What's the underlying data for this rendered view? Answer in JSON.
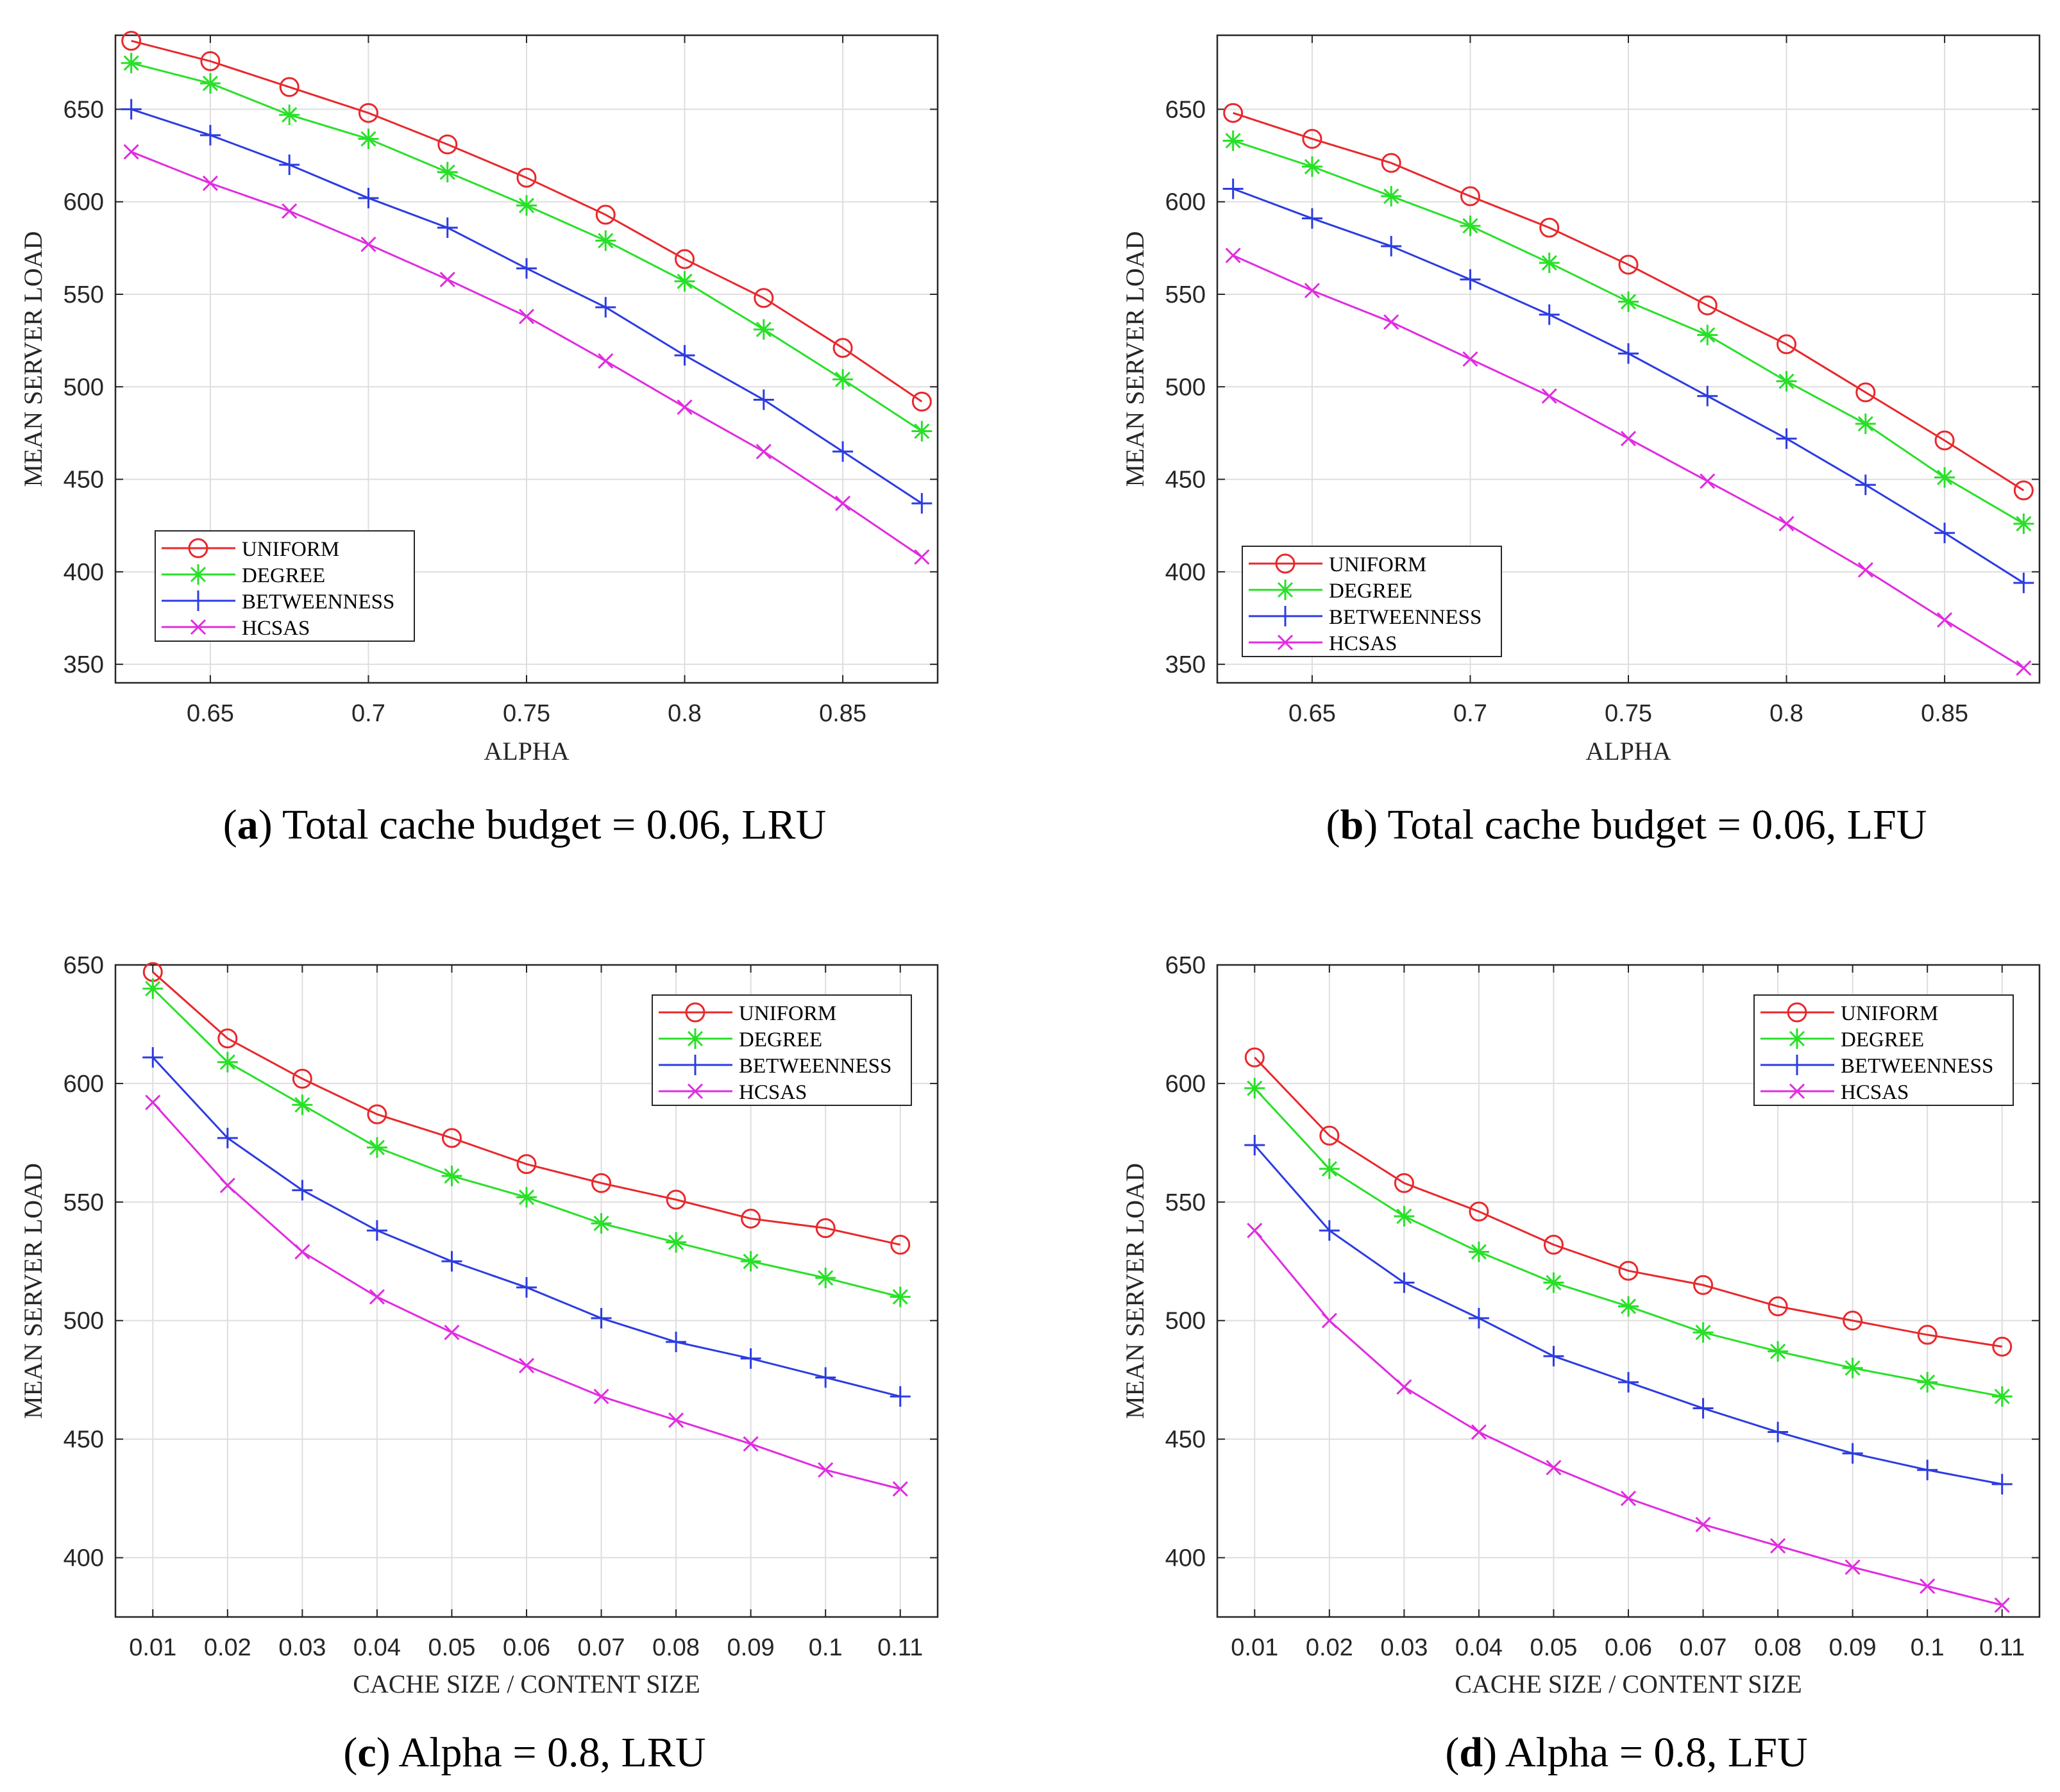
{
  "chart_data": [
    {
      "type": "line",
      "caption_letter": "a",
      "caption_text": " Total cache budget = 0.06, LRU",
      "xlabel": "ALPHA",
      "ylabel": "MEAN SERVER LOAD",
      "x": [
        0.625,
        0.65,
        0.675,
        0.7,
        0.725,
        0.75,
        0.775,
        0.8,
        0.825,
        0.85,
        0.875
      ],
      "xlim": [
        0.62,
        0.88
      ],
      "ylim": [
        340,
        690
      ],
      "xticks": [
        0.65,
        0.7,
        0.75,
        0.8,
        0.85
      ],
      "xtick_labels": [
        "0.65",
        "0.7",
        "0.75",
        "0.8",
        "0.85"
      ],
      "yticks": [
        350,
        400,
        450,
        500,
        550,
        600,
        650
      ],
      "ytick_labels": [
        "350",
        "400",
        "450",
        "500",
        "550",
        "600",
        "650"
      ],
      "grid": true,
      "legend_position": "bottom-left",
      "series": [
        {
          "name": "UNIFORM",
          "color": "#e8282c",
          "marker": "circle",
          "values": [
            687,
            676,
            662,
            648,
            631,
            613,
            593,
            569,
            548,
            521,
            492
          ]
        },
        {
          "name": "DEGREE",
          "color": "#28e028",
          "marker": "asterisk",
          "values": [
            675,
            664,
            647,
            634,
            616,
            598,
            579,
            557,
            531,
            504,
            476
          ]
        },
        {
          "name": "BETWEENNESS",
          "color": "#2c3ce0",
          "marker": "plus",
          "values": [
            650,
            636,
            620,
            602,
            586,
            564,
            543,
            517,
            493,
            465,
            437
          ]
        },
        {
          "name": "HCSAS",
          "color": "#e02ce0",
          "marker": "cross",
          "values": [
            627,
            610,
            595,
            577,
            558,
            538,
            514,
            489,
            465,
            437,
            408
          ]
        }
      ]
    },
    {
      "type": "line",
      "caption_letter": "b",
      "caption_text": " Total cache budget = 0.06, LFU",
      "xlabel": "ALPHA",
      "ylabel": "MEAN SERVER LOAD",
      "x": [
        0.625,
        0.65,
        0.675,
        0.7,
        0.725,
        0.75,
        0.775,
        0.8,
        0.825,
        0.85,
        0.875
      ],
      "xlim": [
        0.62,
        0.88
      ],
      "ylim": [
        340,
        690
      ],
      "xticks": [
        0.65,
        0.7,
        0.75,
        0.8,
        0.85
      ],
      "xtick_labels": [
        "0.65",
        "0.7",
        "0.75",
        "0.8",
        "0.85"
      ],
      "yticks": [
        350,
        400,
        450,
        500,
        550,
        600,
        650
      ],
      "ytick_labels": [
        "350",
        "400",
        "450",
        "500",
        "550",
        "600",
        "650"
      ],
      "grid": true,
      "legend_position": "bottom-left",
      "series": [
        {
          "name": "UNIFORM",
          "color": "#e8282c",
          "marker": "circle",
          "values": [
            648,
            634,
            621,
            603,
            586,
            566,
            544,
            523,
            497,
            471,
            444
          ]
        },
        {
          "name": "DEGREE",
          "color": "#28e028",
          "marker": "asterisk",
          "values": [
            633,
            619,
            603,
            587,
            567,
            546,
            528,
            503,
            480,
            451,
            426
          ]
        },
        {
          "name": "BETWEENNESS",
          "color": "#2c3ce0",
          "marker": "plus",
          "values": [
            607,
            591,
            576,
            558,
            539,
            518,
            495,
            472,
            447,
            421,
            394
          ]
        },
        {
          "name": "HCSAS",
          "color": "#e02ce0",
          "marker": "cross",
          "values": [
            571,
            552,
            535,
            515,
            495,
            472,
            449,
            426,
            401,
            374,
            348
          ]
        }
      ]
    },
    {
      "type": "line",
      "caption_letter": "c",
      "caption_text": " Alpha = 0.8, LRU",
      "xlabel": "CACHE SIZE / CONTENT SIZE",
      "ylabel": "MEAN SERVER LOAD",
      "x": [
        0.01,
        0.02,
        0.03,
        0.04,
        0.05,
        0.06,
        0.07,
        0.08,
        0.09,
        0.1,
        0.11
      ],
      "xlim": [
        0.005,
        0.115
      ],
      "ylim": [
        375,
        650
      ],
      "xticks": [
        0.01,
        0.02,
        0.03,
        0.04,
        0.05,
        0.06,
        0.07,
        0.08,
        0.09,
        0.1,
        0.11
      ],
      "xtick_labels": [
        "0.01",
        "0.02",
        "0.03",
        "0.04",
        "0.05",
        "0.06",
        "0.07",
        "0.08",
        "0.09",
        "0.1",
        "0.11"
      ],
      "yticks": [
        400,
        450,
        500,
        550,
        600,
        650
      ],
      "ytick_labels": [
        "400",
        "450",
        "500",
        "550",
        "600",
        "650"
      ],
      "grid": true,
      "legend_position": "top-right",
      "series": [
        {
          "name": "UNIFORM",
          "color": "#e8282c",
          "marker": "circle",
          "values": [
            647,
            619,
            602,
            587,
            577,
            566,
            558,
            551,
            543,
            539,
            532
          ]
        },
        {
          "name": "DEGREE",
          "color": "#28e028",
          "marker": "asterisk",
          "values": [
            640,
            609,
            591,
            573,
            561,
            552,
            541,
            533,
            525,
            518,
            510
          ]
        },
        {
          "name": "BETWEENNESS",
          "color": "#2c3ce0",
          "marker": "plus",
          "values": [
            611,
            577,
            555,
            538,
            525,
            514,
            501,
            491,
            484,
            476,
            468
          ]
        },
        {
          "name": "HCSAS",
          "color": "#e02ce0",
          "marker": "cross",
          "values": [
            592,
            557,
            529,
            510,
            495,
            481,
            468,
            458,
            448,
            437,
            429
          ]
        }
      ]
    },
    {
      "type": "line",
      "caption_letter": "d",
      "caption_text": " Alpha = 0.8, LFU",
      "xlabel": "CACHE SIZE / CONTENT SIZE",
      "ylabel": "MEAN SERVER LOAD",
      "x": [
        0.01,
        0.02,
        0.03,
        0.04,
        0.05,
        0.06,
        0.07,
        0.08,
        0.09,
        0.1,
        0.11
      ],
      "xlim": [
        0.005,
        0.115
      ],
      "ylim": [
        375,
        650
      ],
      "xticks": [
        0.01,
        0.02,
        0.03,
        0.04,
        0.05,
        0.06,
        0.07,
        0.08,
        0.09,
        0.1,
        0.11
      ],
      "xtick_labels": [
        "0.01",
        "0.02",
        "0.03",
        "0.04",
        "0.05",
        "0.06",
        "0.07",
        "0.08",
        "0.09",
        "0.1",
        "0.11"
      ],
      "yticks": [
        400,
        450,
        500,
        550,
        600,
        650
      ],
      "ytick_labels": [
        "400",
        "450",
        "500",
        "550",
        "600",
        "650"
      ],
      "grid": true,
      "legend_position": "top-right",
      "series": [
        {
          "name": "UNIFORM",
          "color": "#e8282c",
          "marker": "circle",
          "values": [
            611,
            578,
            558,
            546,
            532,
            521,
            515,
            506,
            500,
            494,
            489
          ]
        },
        {
          "name": "DEGREE",
          "color": "#28e028",
          "marker": "asterisk",
          "values": [
            598,
            564,
            544,
            529,
            516,
            506,
            495,
            487,
            480,
            474,
            468
          ]
        },
        {
          "name": "BETWEENNESS",
          "color": "#2c3ce0",
          "marker": "plus",
          "values": [
            574,
            538,
            516,
            501,
            485,
            474,
            463,
            453,
            444,
            437,
            431
          ]
        },
        {
          "name": "HCSAS",
          "color": "#e02ce0",
          "marker": "cross",
          "values": [
            538,
            500,
            472,
            453,
            438,
            425,
            414,
            405,
            396,
            388,
            380
          ]
        }
      ]
    }
  ]
}
